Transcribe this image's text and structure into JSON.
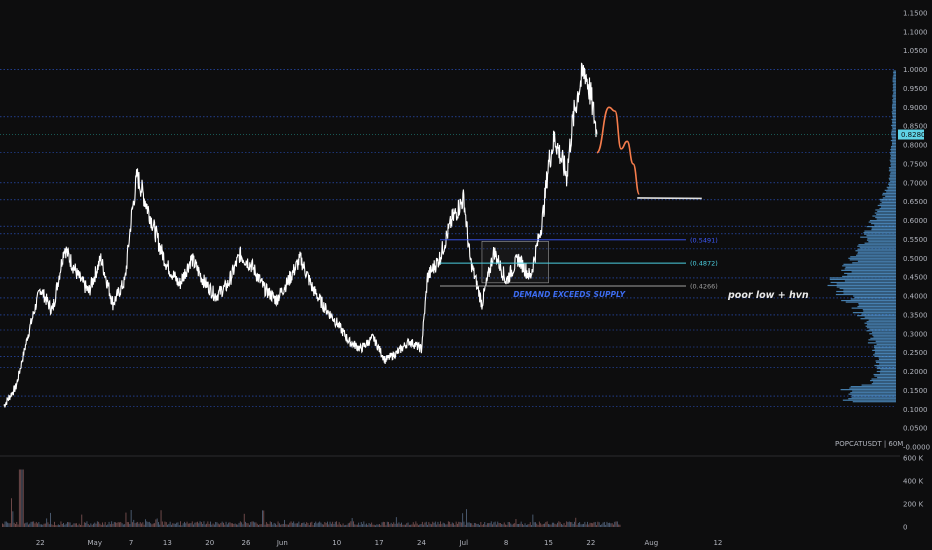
{
  "chart_data": {
    "type": "line",
    "symbol_label": "POPCATUSDT | 60M",
    "price_axis": {
      "ticks": [
        "1.1500",
        "1.1000",
        "1.0500",
        "1.0000",
        "0.9500",
        "0.9000",
        "0.8500",
        "0.8000",
        "0.7500",
        "0.7000",
        "0.6500",
        "0.6000",
        "0.5500",
        "0.5000",
        "0.4500",
        "0.4000",
        "0.3500",
        "0.3000",
        "0.2500",
        "0.2000",
        "0.1500",
        "0.1000",
        "0.0500",
        "-0.0000"
      ],
      "range": [
        0.0,
        1.15
      ]
    },
    "time_axis": {
      "ticks": [
        "22",
        "May",
        "7",
        "13",
        "20",
        "26",
        "Jun",
        "10",
        "17",
        "24",
        "Jul",
        "8",
        "15",
        "22",
        "Aug",
        "12"
      ]
    },
    "volume_axis": {
      "ticks": [
        "600 K",
        "400 K",
        "200 K",
        "0"
      ],
      "range": [
        0,
        600000
      ]
    },
    "current_price": {
      "label": "0.8280",
      "value": 0.828,
      "color": "#5fd3e6"
    },
    "fib_levels": [
      {
        "label": "(0.5491)",
        "value": 0.5491,
        "color": "#3d5afe"
      },
      {
        "label": "(0.4872)",
        "value": 0.4872,
        "color": "#4dd0e1"
      },
      {
        "label": "(0.4266)",
        "value": 0.4266,
        "color": "#9e9e9e"
      }
    ],
    "horizontal_levels": [
      1.0,
      0.875,
      0.78,
      0.7,
      0.655,
      0.585,
      0.565,
      0.525,
      0.448,
      0.395,
      0.35,
      0.31,
      0.265,
      0.24,
      0.21,
      0.135,
      0.108
    ],
    "price_series": [
      {
        "date": "Apr 16",
        "price": 0.11
      },
      {
        "date": "Apr 18",
        "price": 0.16
      },
      {
        "date": "Apr 20",
        "price": 0.3
      },
      {
        "date": "Apr 22",
        "price": 0.42
      },
      {
        "date": "Apr 24",
        "price": 0.36
      },
      {
        "date": "Apr 26",
        "price": 0.53
      },
      {
        "date": "Apr 28",
        "price": 0.46
      },
      {
        "date": "Apr 30",
        "price": 0.41
      },
      {
        "date": "May 2",
        "price": 0.5
      },
      {
        "date": "May 4",
        "price": 0.38
      },
      {
        "date": "May 6",
        "price": 0.44
      },
      {
        "date": "May 7",
        "price": 0.6
      },
      {
        "date": "May 8",
        "price": 0.72
      },
      {
        "date": "May 10",
        "price": 0.62
      },
      {
        "date": "May 12",
        "price": 0.52
      },
      {
        "date": "May 13",
        "price": 0.48
      },
      {
        "date": "May 15",
        "price": 0.43
      },
      {
        "date": "May 17",
        "price": 0.5
      },
      {
        "date": "May 19",
        "price": 0.44
      },
      {
        "date": "May 21",
        "price": 0.4
      },
      {
        "date": "May 23",
        "price": 0.43
      },
      {
        "date": "May 25",
        "price": 0.51
      },
      {
        "date": "May 27",
        "price": 0.48
      },
      {
        "date": "May 29",
        "price": 0.42
      },
      {
        "date": "May 31",
        "price": 0.39
      },
      {
        "date": "Jun 2",
        "price": 0.44
      },
      {
        "date": "Jun 4",
        "price": 0.5
      },
      {
        "date": "Jun 6",
        "price": 0.42
      },
      {
        "date": "Jun 8",
        "price": 0.37
      },
      {
        "date": "Jun 10",
        "price": 0.33
      },
      {
        "date": "Jun 12",
        "price": 0.28
      },
      {
        "date": "Jun 14",
        "price": 0.26
      },
      {
        "date": "Jun 16",
        "price": 0.29
      },
      {
        "date": "Jun 18",
        "price": 0.23
      },
      {
        "date": "Jun 20",
        "price": 0.25
      },
      {
        "date": "Jun 22",
        "price": 0.28
      },
      {
        "date": "Jun 24",
        "price": 0.26
      },
      {
        "date": "Jun 25",
        "price": 0.45
      },
      {
        "date": "Jun 27",
        "price": 0.5
      },
      {
        "date": "Jun 29",
        "price": 0.6
      },
      {
        "date": "Jul 1",
        "price": 0.66
      },
      {
        "date": "Jul 2",
        "price": 0.5
      },
      {
        "date": "Jul 4",
        "price": 0.38
      },
      {
        "date": "Jul 6",
        "price": 0.52
      },
      {
        "date": "Jul 8",
        "price": 0.44
      },
      {
        "date": "Jul 10",
        "price": 0.5
      },
      {
        "date": "Jul 12",
        "price": 0.45
      },
      {
        "date": "Jul 14",
        "price": 0.6
      },
      {
        "date": "Jul 15",
        "price": 0.75
      },
      {
        "date": "Jul 16",
        "price": 0.82
      },
      {
        "date": "Jul 18",
        "price": 0.72
      },
      {
        "date": "Jul 19",
        "price": 0.86
      },
      {
        "date": "Jul 20",
        "price": 0.95
      },
      {
        "date": "Jul 21",
        "price": 1.0
      },
      {
        "date": "Jul 22",
        "price": 0.93
      },
      {
        "date": "Jul 23",
        "price": 0.83
      }
    ],
    "projection": [
      {
        "date": "Jul 23",
        "price": 0.78
      },
      {
        "date": "Jul 25",
        "price": 0.9
      },
      {
        "date": "Jul 26",
        "price": 0.89
      },
      {
        "date": "Jul 27",
        "price": 0.79
      },
      {
        "date": "Jul 28",
        "price": 0.81
      },
      {
        "date": "Jul 29",
        "price": 0.75
      },
      {
        "date": "Jul 30",
        "price": 0.67
      }
    ],
    "target_line": {
      "value": 0.66,
      "from": "Jul 29",
      "to": "Aug 10",
      "color": "#e0e0e0"
    },
    "demand_box": {
      "from": "Jul 4",
      "to": "Jul 15",
      "low": 0.435,
      "high": 0.545
    },
    "volume_profile_levels": [
      {
        "price": 0.15,
        "volume": 0.85
      },
      {
        "price": 0.17,
        "volume": 0.45
      },
      {
        "price": 0.2,
        "volume": 0.3
      },
      {
        "price": 0.25,
        "volume": 0.35
      },
      {
        "price": 0.3,
        "volume": 0.45
      },
      {
        "price": 0.35,
        "volume": 0.6
      },
      {
        "price": 0.38,
        "volume": 0.75
      },
      {
        "price": 0.41,
        "volume": 0.9
      },
      {
        "price": 0.43,
        "volume": 1.0
      },
      {
        "price": 0.45,
        "volume": 0.95
      },
      {
        "price": 0.48,
        "volume": 0.8
      },
      {
        "price": 0.51,
        "volume": 0.65
      },
      {
        "price": 0.55,
        "volume": 0.55
      },
      {
        "price": 0.6,
        "volume": 0.4
      },
      {
        "price": 0.65,
        "volume": 0.25
      },
      {
        "price": 0.7,
        "volume": 0.12
      },
      {
        "price": 0.8,
        "volume": 0.08
      },
      {
        "price": 0.9,
        "volume": 0.06
      },
      {
        "price": 0.95,
        "volume": 0.05
      }
    ],
    "annotations": {
      "demand": "DEMAND EXCEEDS SUPPLY",
      "poor_low": "poor low + hvn"
    },
    "colors": {
      "price": "#ffffff",
      "projection": "#f57c4c",
      "grid": "#1f2023",
      "profile": "#5aa6e6"
    }
  }
}
